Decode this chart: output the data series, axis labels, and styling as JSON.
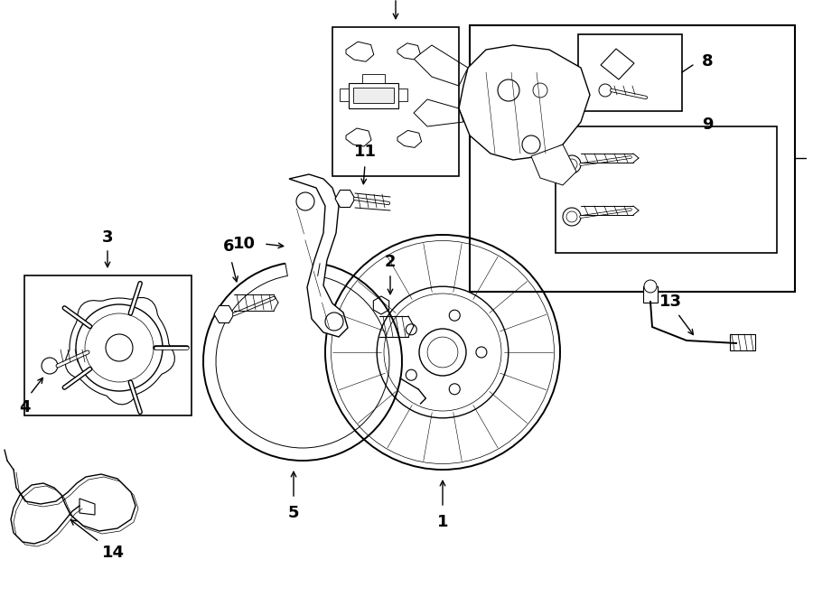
{
  "bg_color": "#ffffff",
  "line_color": "#000000",
  "figw": 9.0,
  "figh": 6.61,
  "dpi": 100,
  "lw_thin": 0.7,
  "lw_med": 1.0,
  "lw_thick": 1.4,
  "label_fs": 13
}
